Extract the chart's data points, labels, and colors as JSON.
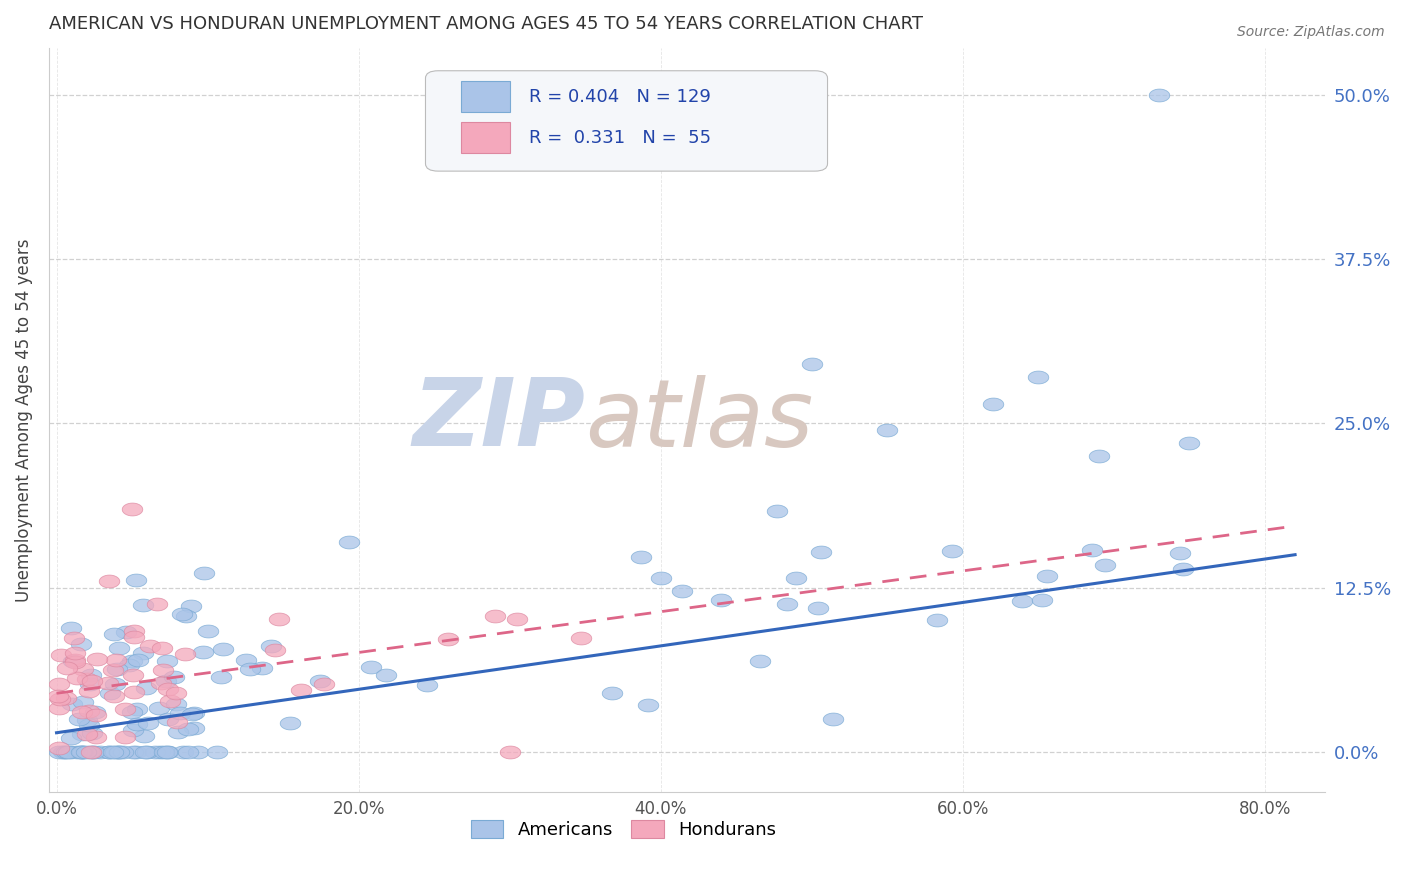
{
  "title": "AMERICAN VS HONDURAN UNEMPLOYMENT AMONG AGES 45 TO 54 YEARS CORRELATION CHART",
  "source": "Source: ZipAtlas.com",
  "ylabel_label": "Unemployment Among Ages 45 to 54 years",
  "american_color": "#aac4e8",
  "honduran_color": "#f4a8bc",
  "american_line_color": "#3366bb",
  "honduran_line_color": "#dd6688",
  "watermark_zip_color": "#c8d4e8",
  "watermark_atlas_color": "#d8c8c0",
  "background_color": "#ffffff",
  "grid_color": "#cccccc",
  "title_color": "#333333",
  "right_tick_color": "#4472c4",
  "bottom_tick_color": "#555555",
  "source_color": "#777777",
  "legend_text_color": "#2244aa",
  "xticks": [
    0.0,
    0.2,
    0.4,
    0.6,
    0.8
  ],
  "yticks": [
    0.0,
    0.125,
    0.25,
    0.375,
    0.5
  ],
  "xlim": [
    -0.005,
    0.84
  ],
  "ylim": [
    -0.03,
    0.535
  ],
  "american_reg_slope": 0.165,
  "american_reg_intercept": 0.015,
  "honduran_reg_slope": 0.155,
  "honduran_reg_intercept": 0.045,
  "am_R": "0.404",
  "am_N": "129",
  "ho_R": "0.331",
  "ho_N": "55"
}
